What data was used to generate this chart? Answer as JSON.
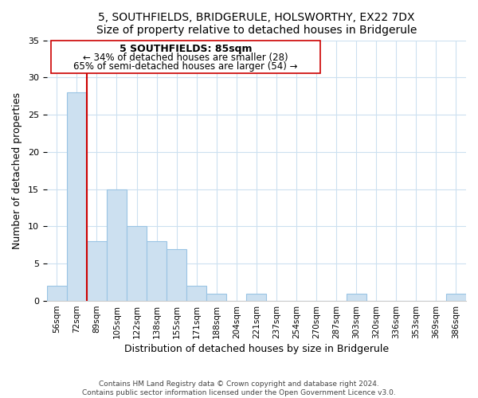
{
  "title": "5, SOUTHFIELDS, BRIDGERULE, HOLSWORTHY, EX22 7DX",
  "subtitle": "Size of property relative to detached houses in Bridgerule",
  "xlabel": "Distribution of detached houses by size in Bridgerule",
  "ylabel": "Number of detached properties",
  "footer_lines": [
    "Contains HM Land Registry data © Crown copyright and database right 2024.",
    "Contains public sector information licensed under the Open Government Licence v3.0."
  ],
  "bin_labels": [
    "56sqm",
    "72sqm",
    "89sqm",
    "105sqm",
    "122sqm",
    "138sqm",
    "155sqm",
    "171sqm",
    "188sqm",
    "204sqm",
    "221sqm",
    "237sqm",
    "254sqm",
    "270sqm",
    "287sqm",
    "303sqm",
    "320sqm",
    "336sqm",
    "353sqm",
    "369sqm",
    "386sqm"
  ],
  "bar_heights": [
    2,
    28,
    8,
    15,
    10,
    8,
    7,
    2,
    1,
    0,
    1,
    0,
    0,
    0,
    0,
    1,
    0,
    0,
    0,
    0,
    1
  ],
  "bar_color": "#cce0f0",
  "bar_edge_color": "#99c4e4",
  "property_line_color": "#cc0000",
  "ylim": [
    0,
    35
  ],
  "yticks": [
    0,
    5,
    10,
    15,
    20,
    25,
    30,
    35
  ],
  "annotation_title": "5 SOUTHFIELDS: 85sqm",
  "annotation_line1": "← 34% of detached houses are smaller (28)",
  "annotation_line2": "65% of semi-detached houses are larger (54) →",
  "title_fontsize": 10,
  "axis_label_fontsize": 9,
  "tick_fontsize": 7.5,
  "annotation_fontsize": 9,
  "grid_color": "#cce0f0",
  "annotation_line_color": "#cc0000"
}
